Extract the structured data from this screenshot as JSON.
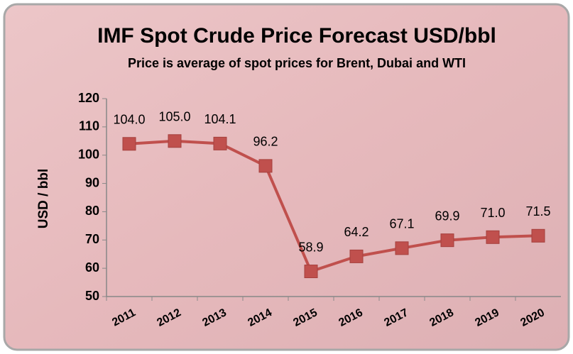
{
  "chart_data": {
    "type": "line",
    "title": "IMF Spot Crude Price Forecast USD/bbl",
    "subtitle": "Price is average of spot prices for Brent, Dubai and WTI",
    "y_label": "USD / bbl",
    "categories": [
      "2011",
      "2012",
      "2013",
      "2014",
      "2015",
      "2016",
      "2017",
      "2018",
      "2019",
      "2020"
    ],
    "values": [
      104.0,
      105.0,
      104.1,
      96.2,
      58.9,
      64.2,
      67.1,
      69.9,
      71.0,
      71.5
    ],
    "value_labels": [
      "104.0",
      "105.0",
      "104.1",
      "96.2",
      "58.9",
      "64.2",
      "67.1",
      "69.9",
      "71.0",
      "71.5"
    ],
    "color": "#c0504d",
    "ylim": [
      50,
      120
    ],
    "yticks": [
      50,
      60,
      70,
      80,
      90,
      100,
      110,
      120
    ],
    "grid": false
  }
}
